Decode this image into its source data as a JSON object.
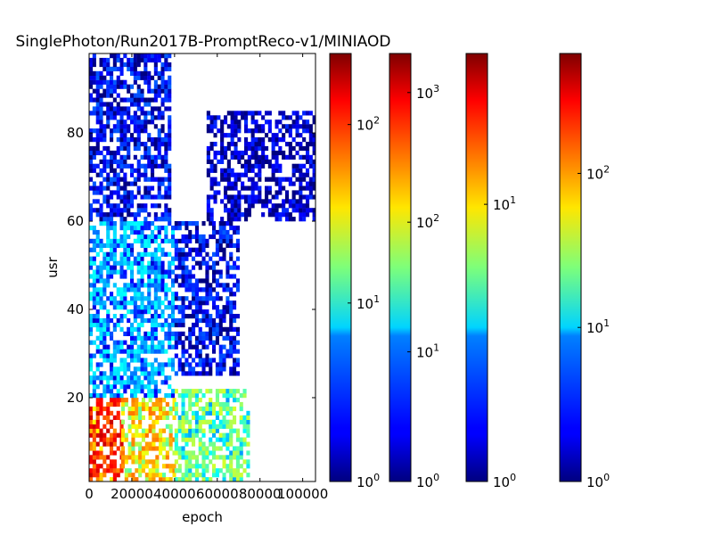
{
  "chart_data": {
    "type": "heatmap",
    "title": "SinglePhoton/Run2017B-PromptReco-v1/MINIAOD",
    "xlabel": "epoch",
    "ylabel": "usr",
    "xlim": [
      0,
      106000
    ],
    "ylim": [
      1,
      98
    ],
    "x_ticks": [
      "0",
      "20000",
      "40000",
      "60000",
      "80000",
      "100000"
    ],
    "x_tick_values": [
      0,
      20000,
      40000,
      60000,
      80000,
      100000
    ],
    "y_ticks": [
      "20",
      "40",
      "60",
      "80"
    ],
    "y_tick_values": [
      20,
      40,
      60,
      80
    ],
    "colormap": "jet",
    "log_color_scale": true,
    "grid": false,
    "colorbars": [
      {
        "min": 1,
        "max": 250,
        "ticks": [
          {
            "base": "10",
            "exp": "0",
            "value": 1
          },
          {
            "base": "10",
            "exp": "1",
            "value": 10
          },
          {
            "base": "10",
            "exp": "2",
            "value": 100
          }
        ]
      },
      {
        "min": 1,
        "max": 2000,
        "ticks": [
          {
            "base": "10",
            "exp": "0",
            "value": 1
          },
          {
            "base": "10",
            "exp": "1",
            "value": 10
          },
          {
            "base": "10",
            "exp": "2",
            "value": 100
          },
          {
            "base": "10",
            "exp": "3",
            "value": 1000
          }
        ]
      },
      {
        "min": 1,
        "max": 35,
        "ticks": [
          {
            "base": "10",
            "exp": "0",
            "value": 1
          },
          {
            "base": "10",
            "exp": "1",
            "value": 10
          }
        ]
      },
      {
        "min": 1,
        "max": 600,
        "ticks": [
          {
            "base": "10",
            "exp": "0",
            "value": 1
          },
          {
            "base": "10",
            "exp": "1",
            "value": 10
          },
          {
            "base": "10",
            "exp": "2",
            "value": 100
          }
        ]
      }
    ],
    "density_regions": [
      {
        "x": [
          0,
          15000
        ],
        "y": [
          1,
          20
        ],
        "level": 100
      },
      {
        "x": [
          15000,
          40000
        ],
        "y": [
          1,
          20
        ],
        "level": 40
      },
      {
        "x": [
          40000,
          75000
        ],
        "y": [
          1,
          22
        ],
        "level": 15
      },
      {
        "x": [
          0,
          40000
        ],
        "y": [
          20,
          60
        ],
        "level": 5
      },
      {
        "x": [
          40000,
          70000
        ],
        "y": [
          25,
          60
        ],
        "level": 2
      },
      {
        "x": [
          0,
          38000
        ],
        "y": [
          60,
          98
        ],
        "level": 2
      },
      {
        "x": [
          55000,
          106000
        ],
        "y": [
          60,
          85
        ],
        "level": 1.5
      }
    ]
  }
}
